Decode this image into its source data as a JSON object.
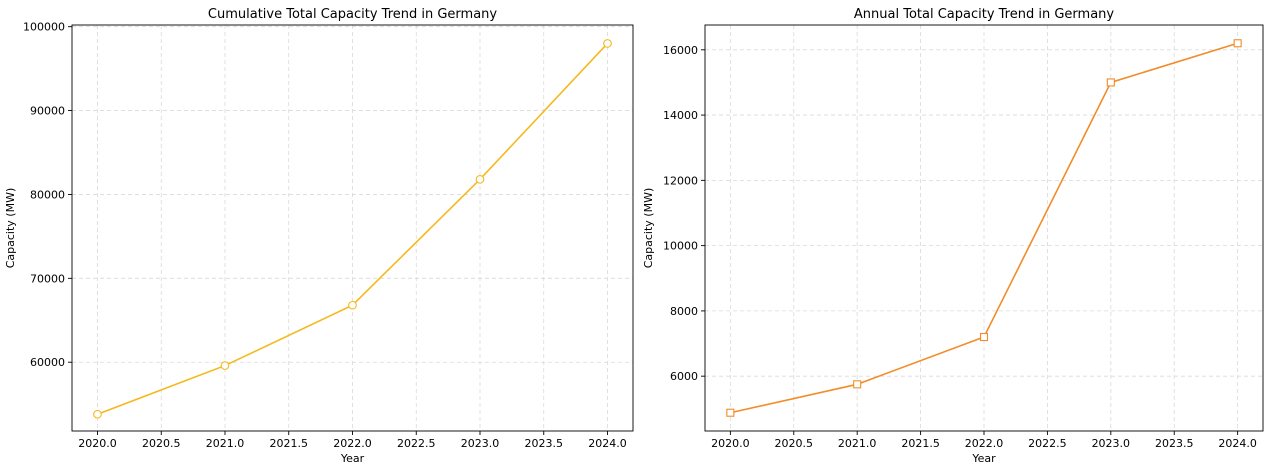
{
  "chart_data": [
    {
      "type": "line",
      "title": "Cumulative Total Capacity Trend in Germany",
      "xlabel": "Year",
      "ylabel": "Capacity (MW)",
      "x": [
        2020,
        2021,
        2022,
        2023,
        2024
      ],
      "series": [
        {
          "values": [
            53800,
            59600,
            66800,
            81800,
            98000
          ]
        }
      ],
      "xlim": [
        2019.8,
        2024.2
      ],
      "ylim": [
        51800,
        100200
      ],
      "xticks": [
        2020.0,
        2020.5,
        2021.0,
        2021.5,
        2022.0,
        2022.5,
        2023.0,
        2023.5,
        2024.0
      ],
      "xtick_labels": [
        "2020.0",
        "2020.5",
        "2021.0",
        "2021.5",
        "2022.0",
        "2022.5",
        "2023.0",
        "2023.5",
        "2024.0"
      ],
      "yticks": [
        60000,
        70000,
        80000,
        90000,
        100000
      ],
      "ytick_labels": [
        "60000",
        "70000",
        "80000",
        "90000",
        "100000"
      ],
      "grid": true,
      "marker": "circle",
      "color": "#f5b91e"
    },
    {
      "type": "line",
      "title": "Annual Total Capacity Trend in Germany",
      "xlabel": "Year",
      "ylabel": "Capacity (MW)",
      "x": [
        2020,
        2021,
        2022,
        2023,
        2024
      ],
      "series": [
        {
          "values": [
            4880,
            5750,
            7200,
            15000,
            16200
          ]
        }
      ],
      "xlim": [
        2019.8,
        2024.2
      ],
      "ylim": [
        4320,
        16760
      ],
      "xticks": [
        2020.0,
        2020.5,
        2021.0,
        2021.5,
        2022.0,
        2022.5,
        2023.0,
        2023.5,
        2024.0
      ],
      "xtick_labels": [
        "2020.0",
        "2020.5",
        "2021.0",
        "2021.5",
        "2022.0",
        "2022.5",
        "2023.0",
        "2023.5",
        "2024.0"
      ],
      "yticks": [
        6000,
        8000,
        10000,
        12000,
        14000,
        16000
      ],
      "ytick_labels": [
        "6000",
        "8000",
        "10000",
        "12000",
        "14000",
        "16000"
      ],
      "grid": true,
      "marker": "square",
      "color": "#f28c28"
    }
  ]
}
